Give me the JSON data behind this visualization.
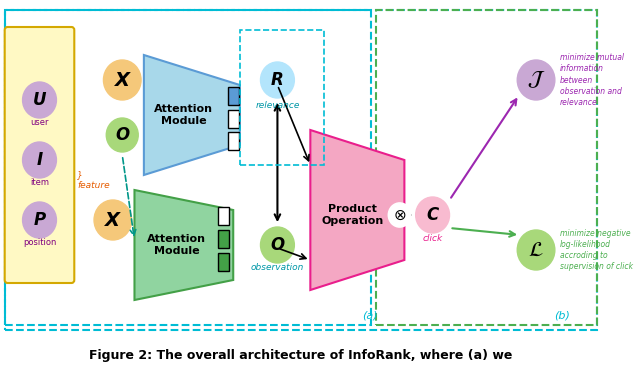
{
  "fig_width": 6.4,
  "fig_height": 3.74,
  "bg_color": "#ffffff",
  "outer_border_color": "#00bcd4",
  "caption": "Figure 2: The overall architecture of InfoRank, where (a) we",
  "colors": {
    "blue_module": "#a8d8ea",
    "green_module": "#90d4a0",
    "pink_module": "#f4a7c3",
    "purple_circle": "#c9a8d4",
    "orange_circle": "#f5c87a",
    "green_circle": "#a8d87a",
    "teal_arrow": "#009688",
    "purple_arrow": "#9c27b0",
    "green_arrow": "#4caf50",
    "yellow_bg": "#fff9c4",
    "teal_border": "#00bcd4",
    "green_dashed_border": "#4caf50",
    "pink_circle": "#f8bbd0"
  },
  "label_a": "(a)",
  "label_b": "(b)"
}
